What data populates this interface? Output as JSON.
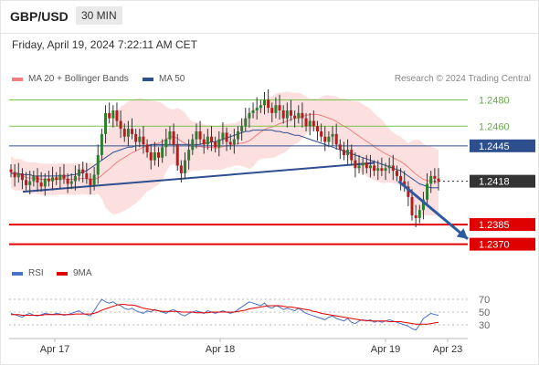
{
  "header": {
    "symbol": "GBP/USD",
    "timeframe": "30 MIN"
  },
  "timestamp": "Friday, April 19, 2024 7:22:11 AM CET",
  "legend": {
    "ma20": {
      "label": "MA 20 + Bollinger Bands",
      "color": "#f08080"
    },
    "ma50": {
      "label": "MA 50",
      "color": "#2d4f8e"
    },
    "rsi": {
      "label": "RSI",
      "color": "#4a72c8"
    },
    "rsi9": {
      "label": "9MA",
      "color": "#e00000"
    }
  },
  "source": "Research © 2024 Trading Central",
  "chart_data": [
    {
      "type": "candlestick",
      "ylim": [
        1.236,
        1.2488
      ],
      "x_ticks": [
        "Apr 17",
        "Apr 18",
        "Apr 19",
        "Apr 23"
      ],
      "levels": [
        {
          "value": 1.248,
          "label": "1.2480",
          "role": "resistance",
          "color": "#7cc24a"
        },
        {
          "value": 1.246,
          "label": "1.2460",
          "role": "resistance",
          "color": "#7cc24a"
        },
        {
          "value": 1.2445,
          "label": "1.2445",
          "role": "pivot",
          "color": "#2d4f8e"
        },
        {
          "value": 1.2418,
          "label": "1.2418",
          "role": "last-price",
          "color": "#333333"
        },
        {
          "value": 1.2385,
          "label": "1.2385",
          "role": "support",
          "color": "#e00000"
        },
        {
          "value": 1.237,
          "label": "1.2370",
          "role": "support",
          "color": "#e00000"
        }
      ],
      "close_series": [
        1.2425,
        1.2421,
        1.2424,
        1.2419,
        1.2415,
        1.2418,
        1.2422,
        1.2417,
        1.2414,
        1.242,
        1.2418,
        1.2421,
        1.2419,
        1.2423,
        1.242,
        1.2416,
        1.2418,
        1.2422,
        1.2427,
        1.2424,
        1.242,
        1.2415,
        1.2423,
        1.2438,
        1.2454,
        1.247,
        1.2466,
        1.2472,
        1.2464,
        1.2458,
        1.2452,
        1.2458,
        1.2454,
        1.2448,
        1.2452,
        1.2446,
        1.244,
        1.2434,
        1.244,
        1.2436,
        1.2444,
        1.245,
        1.2456,
        1.2446,
        1.243,
        1.2424,
        1.2434,
        1.2442,
        1.245,
        1.2456,
        1.245,
        1.2446,
        1.2452,
        1.2448,
        1.2444,
        1.245,
        1.2455,
        1.2448,
        1.2446,
        1.245,
        1.2456,
        1.246,
        1.2466,
        1.247,
        1.2472,
        1.2474,
        1.2476,
        1.248,
        1.2474,
        1.247,
        1.2476,
        1.2472,
        1.2466,
        1.2472,
        1.2468,
        1.2466,
        1.247,
        1.2466,
        1.246,
        1.2464,
        1.246,
        1.2456,
        1.2452,
        1.2448,
        1.2452,
        1.2454,
        1.2446,
        1.2442,
        1.2438,
        1.2442,
        1.2434,
        1.2428,
        1.243,
        1.2432,
        1.2428,
        1.243,
        1.2426,
        1.2428,
        1.2426,
        1.2428,
        1.243,
        1.2426,
        1.2422,
        1.2418,
        1.2414,
        1.2406,
        1.2392,
        1.239,
        1.2396,
        1.2404,
        1.2416,
        1.2422,
        1.242,
        1.2418
      ],
      "ma50_series": [
        1.2424,
        1.2424,
        1.2424,
        1.2423,
        1.2423,
        1.2423,
        1.2422,
        1.2422,
        1.2422,
        1.2422,
        1.2422,
        1.2422,
        1.2422,
        1.2422,
        1.2422,
        1.2422,
        1.2423,
        1.2423,
        1.2424,
        1.2425,
        1.2426,
        1.2428,
        1.243,
        1.2432,
        1.2434,
        1.2436,
        1.2438,
        1.244,
        1.2441,
        1.2442,
        1.2443,
        1.2444,
        1.2444,
        1.2445,
        1.2445,
        1.2445,
        1.2445,
        1.2446,
        1.2446,
        1.2446,
        1.2446,
        1.2446,
        1.2446,
        1.2446,
        1.2446,
        1.2446,
        1.2446,
        1.2446,
        1.2446,
        1.2446,
        1.2446,
        1.2447,
        1.2447,
        1.2448,
        1.2448,
        1.2449,
        1.245,
        1.2451,
        1.2452,
        1.2453,
        1.2454,
        1.2455,
        1.2456,
        1.2456,
        1.2457,
        1.2457,
        1.2457,
        1.2457,
        1.2457,
        1.2457,
        1.2456,
        1.2456,
        1.2455,
        1.2455,
        1.2454,
        1.2453,
        1.2453,
        1.2452,
        1.2451,
        1.245,
        1.2449,
        1.2448,
        1.2447,
        1.2446,
        1.2445,
        1.2444,
        1.2443,
        1.2442,
        1.2441,
        1.244,
        1.2439,
        1.2438,
        1.2437,
        1.2436,
        1.2435,
        1.2434,
        1.2433,
        1.2432,
        1.2431,
        1.243,
        1.2429,
        1.2428,
        1.2427,
        1.2426,
        1.2424,
        1.2422,
        1.242,
        1.2418,
        1.2416,
        1.2415,
        1.2414,
        1.2413,
        1.2413,
        1.2413
      ],
      "trendline": [
        [
          0,
          1.241
        ],
        [
          96,
          1.2432
        ]
      ],
      "forecast_arrow": [
        [
          102,
          1.2418
        ],
        [
          108,
          1.2374
        ]
      ]
    },
    {
      "type": "line",
      "ylim": [
        10,
        90
      ],
      "y_ticks": [
        70,
        50,
        30
      ],
      "series": [
        {
          "name": "RSI",
          "values": [
            48,
            46,
            44,
            42,
            46,
            48,
            45,
            44,
            46,
            48,
            47,
            46,
            48,
            47,
            45,
            46,
            48,
            50,
            52,
            48,
            46,
            44,
            52,
            62,
            70,
            66,
            64,
            66,
            62,
            60,
            56,
            54,
            56,
            52,
            50,
            48,
            52,
            50,
            54,
            52,
            50,
            48,
            52,
            54,
            50,
            46,
            44,
            48,
            50,
            52,
            50,
            48,
            52,
            50,
            48,
            50,
            52,
            50,
            48,
            50,
            54,
            58,
            62,
            66,
            64,
            62,
            60,
            64,
            58,
            56,
            60,
            58,
            54,
            56,
            54,
            52,
            56,
            52,
            48,
            46,
            44,
            42,
            40,
            38,
            42,
            44,
            40,
            38,
            36,
            40,
            34,
            32,
            36,
            38,
            36,
            38,
            34,
            36,
            34,
            36,
            38,
            36,
            34,
            32,
            30,
            28,
            24,
            22,
            30,
            40,
            44,
            48,
            46,
            45
          ]
        },
        {
          "name": "9MA",
          "values": [
            46,
            46,
            46,
            45,
            45,
            45,
            45,
            45,
            45,
            46,
            46,
            46,
            46,
            46,
            46,
            46,
            46,
            47,
            47,
            47,
            47,
            47,
            48,
            50,
            53,
            55,
            57,
            59,
            61,
            62,
            62,
            61,
            61,
            60,
            58,
            56,
            55,
            54,
            53,
            52,
            51,
            51,
            51,
            51,
            51,
            50,
            50,
            50,
            50,
            49,
            49,
            49,
            49,
            50,
            50,
            50,
            50,
            50,
            50,
            50,
            51,
            52,
            53,
            55,
            56,
            57,
            58,
            59,
            60,
            60,
            60,
            60,
            59,
            58,
            58,
            57,
            56,
            55,
            54,
            53,
            51,
            50,
            48,
            47,
            46,
            45,
            44,
            43,
            42,
            41,
            40,
            39,
            38,
            37,
            37,
            36,
            36,
            36,
            36,
            36,
            35,
            35,
            35,
            35,
            34,
            33,
            32,
            31,
            31,
            31,
            31,
            32,
            33,
            34
          ]
        }
      ]
    }
  ]
}
